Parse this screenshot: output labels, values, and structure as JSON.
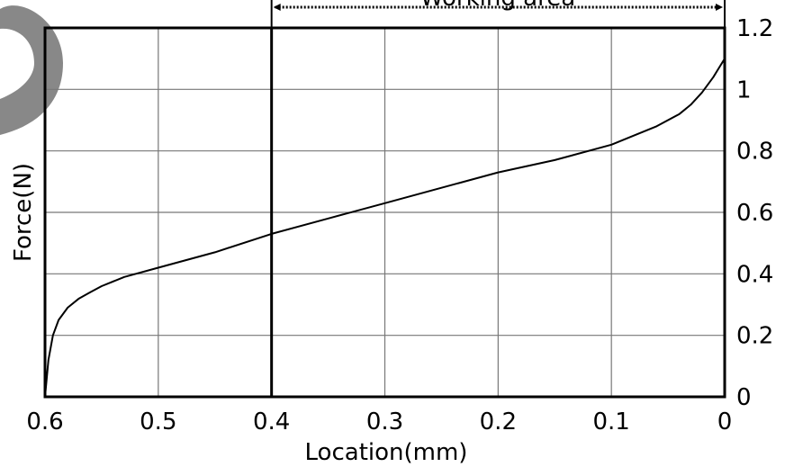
{
  "chart_data": {
    "type": "line",
    "xlabel": "Location(mm)",
    "ylabel": "Force(N)",
    "xlim": [
      0.6,
      0
    ],
    "ylim": [
      0,
      1.2
    ],
    "x_ticks": [
      "0.6",
      "0.5",
      "0.4",
      "0.3",
      "0.2",
      "0.1",
      "0"
    ],
    "y_ticks": [
      "0",
      "0.2",
      "0.4",
      "0.6",
      "0.8",
      "1",
      "1.2"
    ],
    "y_axis_side": "right",
    "grid": true,
    "annotation": {
      "label": "Working area",
      "x_range": [
        0.4,
        0
      ]
    },
    "series": [
      {
        "color": "#000000",
        "x": [
          0.6,
          0.597,
          0.593,
          0.588,
          0.58,
          0.57,
          0.56,
          0.55,
          0.53,
          0.5,
          0.45,
          0.4,
          0.35,
          0.3,
          0.25,
          0.2,
          0.15,
          0.1,
          0.08,
          0.06,
          0.04,
          0.03,
          0.02,
          0.01,
          0.005,
          0
        ],
        "y": [
          0,
          0.12,
          0.2,
          0.25,
          0.29,
          0.32,
          0.34,
          0.36,
          0.39,
          0.42,
          0.47,
          0.53,
          0.58,
          0.63,
          0.68,
          0.73,
          0.77,
          0.82,
          0.85,
          0.88,
          0.92,
          0.95,
          0.99,
          1.04,
          1.07,
          1.1
        ]
      }
    ]
  }
}
